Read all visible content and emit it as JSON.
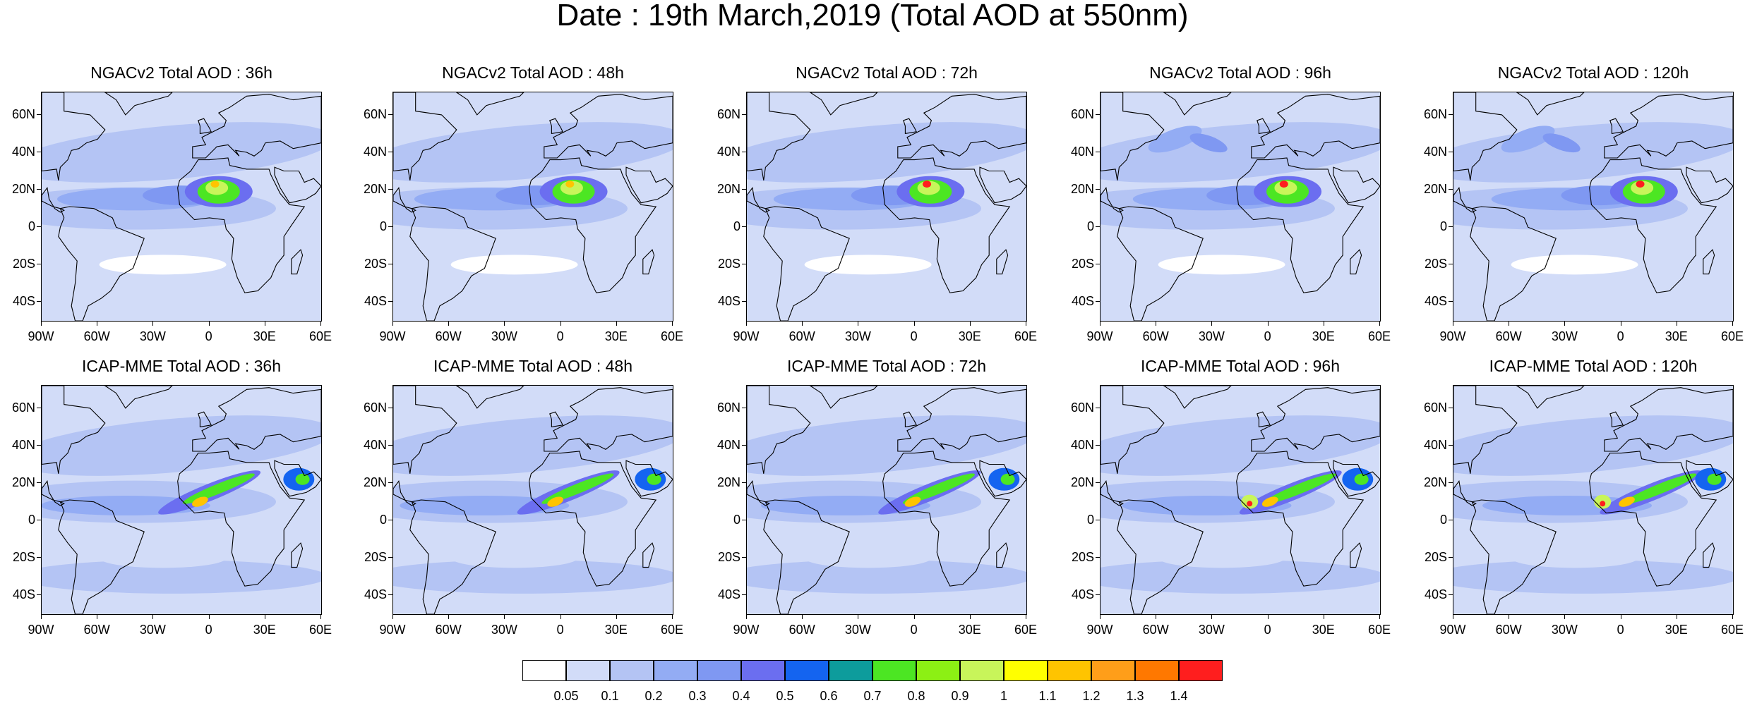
{
  "title": "Date : 19th March,2019 (Total AOD at 550nm)",
  "lat_labels": [
    "60N",
    "40N",
    "20N",
    "0",
    "20S",
    "40S"
  ],
  "lat_values": [
    60,
    40,
    20,
    0,
    -20,
    -40
  ],
  "lon_labels": [
    "90W",
    "60W",
    "30W",
    "0",
    "30E",
    "60E"
  ],
  "lon_values": [
    -90,
    -60,
    -30,
    0,
    30,
    60
  ],
  "map_extent": {
    "lon": [
      -90,
      60
    ],
    "lat": [
      -50,
      72
    ]
  },
  "panels": [
    {
      "title": "NGACv2 Total AOD : 36h",
      "model": "NGACv2",
      "lead": "36h"
    },
    {
      "title": "NGACv2 Total AOD : 48h",
      "model": "NGACv2",
      "lead": "48h"
    },
    {
      "title": "NGACv2 Total AOD : 72h",
      "model": "NGACv2",
      "lead": "72h"
    },
    {
      "title": "NGACv2 Total AOD : 96h",
      "model": "NGACv2",
      "lead": "96h"
    },
    {
      "title": "NGACv2 Total AOD : 120h",
      "model": "NGACv2",
      "lead": "120h"
    },
    {
      "title": "ICAP-MME Total AOD : 36h",
      "model": "ICAP-MME",
      "lead": "36h"
    },
    {
      "title": "ICAP-MME Total AOD : 48h",
      "model": "ICAP-MME",
      "lead": "48h"
    },
    {
      "title": "ICAP-MME Total AOD : 72h",
      "model": "ICAP-MME",
      "lead": "72h"
    },
    {
      "title": "ICAP-MME Total AOD : 96h",
      "model": "ICAP-MME",
      "lead": "96h"
    },
    {
      "title": "ICAP-MME Total AOD : 120h",
      "model": "ICAP-MME",
      "lead": "120h"
    }
  ],
  "colorbar": {
    "colors": [
      "#ffffff",
      "#d2dcf8",
      "#b4c4f4",
      "#93acf4",
      "#7f98f2",
      "#6b6ef0",
      "#1464f0",
      "#0d9c9c",
      "#4ce623",
      "#8cf014",
      "#c8f55a",
      "#ffff00",
      "#ffc400",
      "#ff9e19",
      "#ff7800",
      "#ff1e1e"
    ],
    "labels": [
      "0.05",
      "0.1",
      "0.2",
      "0.3",
      "0.4",
      "0.5",
      "0.6",
      "0.7",
      "0.8",
      "0.9",
      "1",
      "1.1",
      "1.2",
      "1.3",
      "1.4"
    ]
  }
}
